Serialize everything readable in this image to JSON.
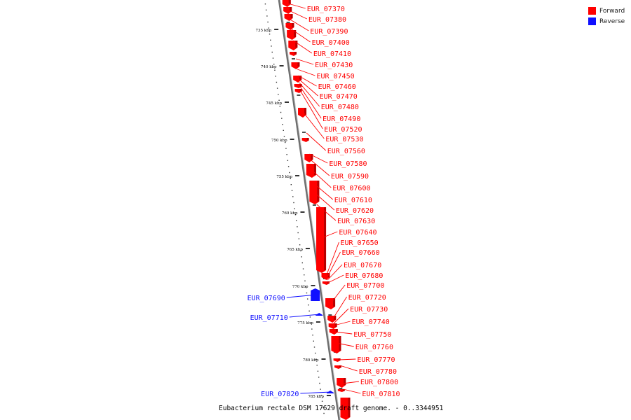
{
  "caption": "Eubacterium rectale DSM 17629 draft genome. - 0..3344951",
  "legend": [
    {
      "label": "Forward",
      "color": "#ff0000"
    },
    {
      "label": "Reverse",
      "color": "#1010ff"
    }
  ],
  "colors": {
    "forward": "#ff0000",
    "reverse": "#1010ff",
    "backbone": "#888888"
  },
  "scale": {
    "unit": "kbp",
    "ticks": [
      735,
      740,
      745,
      750,
      755,
      760,
      765,
      770,
      775,
      780,
      785
    ]
  },
  "genes": [
    {
      "name": "EUR_07370",
      "strand": "forward"
    },
    {
      "name": "EUR_07380",
      "strand": "forward"
    },
    {
      "name": "EUR_07390",
      "strand": "forward"
    },
    {
      "name": "EUR_07400",
      "strand": "forward"
    },
    {
      "name": "EUR_07410",
      "strand": "forward"
    },
    {
      "name": "EUR_07430",
      "strand": "forward"
    },
    {
      "name": "EUR_07450",
      "strand": "forward"
    },
    {
      "name": "EUR_07460",
      "strand": "forward"
    },
    {
      "name": "EUR_07470",
      "strand": "forward"
    },
    {
      "name": "EUR_07480",
      "strand": "forward"
    },
    {
      "name": "EUR_07490",
      "strand": "forward"
    },
    {
      "name": "EUR_07520",
      "strand": "forward"
    },
    {
      "name": "EUR_07530",
      "strand": "forward"
    },
    {
      "name": "EUR_07560",
      "strand": "forward"
    },
    {
      "name": "EUR_07580",
      "strand": "forward"
    },
    {
      "name": "EUR_07590",
      "strand": "forward"
    },
    {
      "name": "EUR_07600",
      "strand": "forward"
    },
    {
      "name": "EUR_07610",
      "strand": "forward"
    },
    {
      "name": "EUR_07620",
      "strand": "forward"
    },
    {
      "name": "EUR_07630",
      "strand": "forward"
    },
    {
      "name": "EUR_07640",
      "strand": "forward"
    },
    {
      "name": "EUR_07650",
      "strand": "forward"
    },
    {
      "name": "EUR_07660",
      "strand": "forward"
    },
    {
      "name": "EUR_07670",
      "strand": "forward"
    },
    {
      "name": "EUR_07680",
      "strand": "forward"
    },
    {
      "name": "EUR_07700",
      "strand": "forward"
    },
    {
      "name": "EUR_07720",
      "strand": "forward"
    },
    {
      "name": "EUR_07730",
      "strand": "forward"
    },
    {
      "name": "EUR_07740",
      "strand": "forward"
    },
    {
      "name": "EUR_07750",
      "strand": "forward"
    },
    {
      "name": "EUR_07760",
      "strand": "forward"
    },
    {
      "name": "EUR_07770",
      "strand": "forward"
    },
    {
      "name": "EUR_07780",
      "strand": "forward"
    },
    {
      "name": "EUR_07800",
      "strand": "forward"
    },
    {
      "name": "EUR_07810",
      "strand": "forward"
    },
    {
      "name": "EUR_07690",
      "strand": "reverse"
    },
    {
      "name": "EUR_07710",
      "strand": "reverse"
    },
    {
      "name": "EUR_07820",
      "strand": "reverse"
    }
  ]
}
